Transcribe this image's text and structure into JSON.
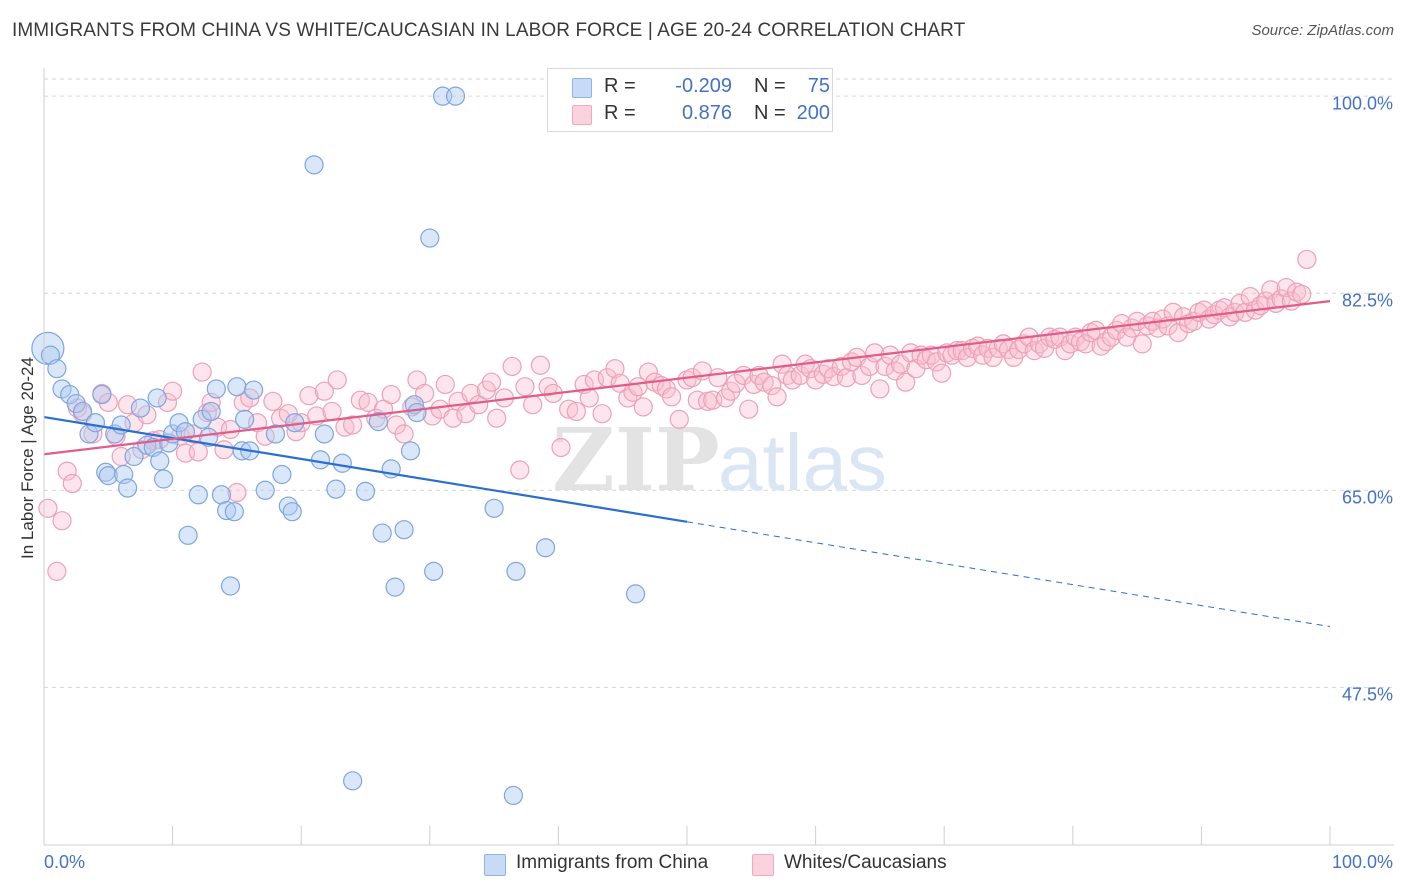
{
  "chart_data": {
    "type": "scatter",
    "title": "IMMIGRANTS FROM CHINA VS WHITE/CAUCASIAN IN LABOR FORCE | AGE 20-24 CORRELATION CHART",
    "source": "Source: ZipAtlas.com",
    "xlabel": "",
    "ylabel": "In Labor Force | Age 20-24",
    "xlim": [
      0,
      100
    ],
    "ylim": [
      33.5,
      102.5
    ],
    "x_tick_labels": {
      "left": "0.0%",
      "right": "100.0%"
    },
    "y_ticks": [
      {
        "value": 100.0,
        "label": "100.0%"
      },
      {
        "value": 82.5,
        "label": "82.5%"
      },
      {
        "value": 65.0,
        "label": "65.0%"
      },
      {
        "value": 47.5,
        "label": "47.5%"
      }
    ],
    "grid": true,
    "watermark": "ZIPatlas",
    "series": [
      {
        "name": "Immigrants from China",
        "color": "#8fb4e8",
        "line_color": "#2a6fd0",
        "R": "-0.209",
        "N": "75",
        "trend": {
          "x0": 0,
          "y0": 71.5,
          "x1": 50,
          "y1": 62.2,
          "dash_to_x": 100,
          "dash_to_y": 52.9
        },
        "points": [
          [
            0.3,
            77.6
          ],
          [
            0.5,
            77.0
          ],
          [
            1.0,
            75.8
          ],
          [
            1.4,
            74.0
          ],
          [
            2.0,
            73.5
          ],
          [
            2.5,
            72.7
          ],
          [
            3.0,
            72.0
          ],
          [
            3.5,
            70.0
          ],
          [
            4.0,
            71.0
          ],
          [
            4.5,
            73.5
          ],
          [
            4.8,
            66.6
          ],
          [
            5.0,
            66.3
          ],
          [
            5.5,
            70.0
          ],
          [
            6.0,
            70.8
          ],
          [
            6.2,
            66.4
          ],
          [
            6.5,
            65.2
          ],
          [
            7.0,
            68.0
          ],
          [
            7.5,
            72.3
          ],
          [
            8.0,
            69.0
          ],
          [
            8.5,
            68.8
          ],
          [
            8.8,
            73.2
          ],
          [
            9.0,
            67.6
          ],
          [
            9.3,
            66.0
          ],
          [
            9.7,
            69.2
          ],
          [
            10.0,
            70.0
          ],
          [
            10.5,
            71.0
          ],
          [
            11.0,
            70.2
          ],
          [
            11.2,
            61.0
          ],
          [
            12.0,
            64.6
          ],
          [
            12.3,
            71.3
          ],
          [
            12.8,
            69.7
          ],
          [
            13.0,
            72.0
          ],
          [
            13.4,
            74.0
          ],
          [
            13.8,
            64.6
          ],
          [
            14.2,
            63.2
          ],
          [
            14.5,
            56.5
          ],
          [
            14.8,
            63.1
          ],
          [
            15.0,
            74.2
          ],
          [
            15.4,
            68.5
          ],
          [
            15.6,
            71.3
          ],
          [
            16.0,
            68.5
          ],
          [
            16.3,
            73.9
          ],
          [
            17.2,
            65.0
          ],
          [
            18.0,
            70.0
          ],
          [
            18.5,
            66.4
          ],
          [
            19.0,
            63.6
          ],
          [
            19.3,
            63.1
          ],
          [
            19.5,
            71.0
          ],
          [
            21.0,
            93.9
          ],
          [
            21.5,
            67.7
          ],
          [
            21.8,
            70.0
          ],
          [
            22.7,
            65.1
          ],
          [
            23.2,
            67.4
          ],
          [
            24.0,
            39.2
          ],
          [
            25.0,
            64.9
          ],
          [
            26.0,
            71.1
          ],
          [
            26.3,
            61.2
          ],
          [
            27.0,
            66.9
          ],
          [
            27.3,
            56.4
          ],
          [
            28.0,
            61.5
          ],
          [
            28.5,
            68.5
          ],
          [
            28.8,
            72.6
          ],
          [
            29.0,
            71.9
          ],
          [
            30.0,
            87.4
          ],
          [
            30.3,
            57.8
          ],
          [
            31.0,
            100.0
          ],
          [
            32.0,
            100.0
          ],
          [
            35.0,
            63.4
          ],
          [
            36.5,
            37.9
          ],
          [
            36.7,
            57.8
          ],
          [
            39.0,
            59.9
          ],
          [
            46.0,
            55.8
          ]
        ]
      },
      {
        "name": "Whites/Caucasians",
        "color": "#f4a7be",
        "line_color": "#e05d8a",
        "R": "0.876",
        "N": "200",
        "trend": {
          "x0": 0,
          "y0": 68.2,
          "x1": 100,
          "y1": 81.8
        },
        "points": [
          [
            0.3,
            63.4
          ],
          [
            1.0,
            57.8
          ],
          [
            1.4,
            62.3
          ],
          [
            1.8,
            66.7
          ],
          [
            2.2,
            65.6
          ],
          [
            2.6,
            72.3
          ],
          [
            3.0,
            71.8
          ],
          [
            3.8,
            70.0
          ],
          [
            4.5,
            73.6
          ],
          [
            5.0,
            72.8
          ],
          [
            5.6,
            69.8
          ],
          [
            6.0,
            68.0
          ],
          [
            6.5,
            72.6
          ],
          [
            7.0,
            71.0
          ],
          [
            7.6,
            68.6
          ],
          [
            8.0,
            71.7
          ],
          [
            8.5,
            69.4
          ],
          [
            9.0,
            69.5
          ],
          [
            9.6,
            72.8
          ],
          [
            10.0,
            73.8
          ],
          [
            10.6,
            69.8
          ],
          [
            11.0,
            68.3
          ],
          [
            11.6,
            70.0
          ],
          [
            12.0,
            68.4
          ],
          [
            12.3,
            75.5
          ],
          [
            12.7,
            71.9
          ],
          [
            13.0,
            72.8
          ],
          [
            13.5,
            70.6
          ],
          [
            14.0,
            68.6
          ],
          [
            14.5,
            70.4
          ],
          [
            15.0,
            64.8
          ],
          [
            15.5,
            72.8
          ],
          [
            16.0,
            73.2
          ],
          [
            16.6,
            71.0
          ],
          [
            17.2,
            69.8
          ],
          [
            17.8,
            72.9
          ],
          [
            18.4,
            71.4
          ],
          [
            19.0,
            71.8
          ],
          [
            19.6,
            70.2
          ],
          [
            20.0,
            71.0
          ],
          [
            20.6,
            73.4
          ],
          [
            21.2,
            71.6
          ],
          [
            21.8,
            73.8
          ],
          [
            22.4,
            72.0
          ],
          [
            22.8,
            74.8
          ],
          [
            23.4,
            70.6
          ],
          [
            24.0,
            70.8
          ],
          [
            24.6,
            73.0
          ],
          [
            25.2,
            72.8
          ],
          [
            25.8,
            71.4
          ],
          [
            26.4,
            72.2
          ],
          [
            27.0,
            73.5
          ],
          [
            27.4,
            70.8
          ],
          [
            28.0,
            70.0
          ],
          [
            28.6,
            72.4
          ],
          [
            29.0,
            74.8
          ],
          [
            29.6,
            73.6
          ],
          [
            30.2,
            71.6
          ],
          [
            30.8,
            72.2
          ],
          [
            31.2,
            74.4
          ],
          [
            31.8,
            71.4
          ],
          [
            32.2,
            72.9
          ],
          [
            32.8,
            71.8
          ],
          [
            33.2,
            73.6
          ],
          [
            33.8,
            72.6
          ],
          [
            34.4,
            73.9
          ],
          [
            34.8,
            74.6
          ],
          [
            35.2,
            71.4
          ],
          [
            35.8,
            73.2
          ],
          [
            36.4,
            76.0
          ],
          [
            37.0,
            66.8
          ],
          [
            37.4,
            74.2
          ],
          [
            38.0,
            72.6
          ],
          [
            38.6,
            76.1
          ],
          [
            39.2,
            74.2
          ],
          [
            39.6,
            73.6
          ],
          [
            40.2,
            68.8
          ],
          [
            40.8,
            72.2
          ],
          [
            41.4,
            72.0
          ],
          [
            42.0,
            74.4
          ],
          [
            42.4,
            73.2
          ],
          [
            42.8,
            74.8
          ],
          [
            43.4,
            71.8
          ],
          [
            43.8,
            75.0
          ],
          [
            44.4,
            75.8
          ],
          [
            44.8,
            74.5
          ],
          [
            45.4,
            73.2
          ],
          [
            45.8,
            73.7
          ],
          [
            46.2,
            74.2
          ],
          [
            46.6,
            72.4
          ],
          [
            47.0,
            75.5
          ],
          [
            47.5,
            74.6
          ],
          [
            48.0,
            74.3
          ],
          [
            48.4,
            74.0
          ],
          [
            48.8,
            73.3
          ],
          [
            49.4,
            71.3
          ],
          [
            50.0,
            74.8
          ],
          [
            50.4,
            75.0
          ],
          [
            50.8,
            73.0
          ],
          [
            51.2,
            75.6
          ],
          [
            51.6,
            72.9
          ],
          [
            52.0,
            73.0
          ],
          [
            52.4,
            75.0
          ],
          [
            53.0,
            73.2
          ],
          [
            53.4,
            73.8
          ],
          [
            53.8,
            74.5
          ],
          [
            54.4,
            75.2
          ],
          [
            54.8,
            72.2
          ],
          [
            55.2,
            74.4
          ],
          [
            55.6,
            75.2
          ],
          [
            56.0,
            74.6
          ],
          [
            56.6,
            74.3
          ],
          [
            57.0,
            73.3
          ],
          [
            57.4,
            76.2
          ],
          [
            57.8,
            75.2
          ],
          [
            58.2,
            74.8
          ],
          [
            58.8,
            75.2
          ],
          [
            59.2,
            76.2
          ],
          [
            59.6,
            75.8
          ],
          [
            60.0,
            74.8
          ],
          [
            60.6,
            75.3
          ],
          [
            61.0,
            75.8
          ],
          [
            61.4,
            75.1
          ],
          [
            62.0,
            76.0
          ],
          [
            62.4,
            75.0
          ],
          [
            62.8,
            76.4
          ],
          [
            63.2,
            76.8
          ],
          [
            63.6,
            75.2
          ],
          [
            64.2,
            76.0
          ],
          [
            64.6,
            77.2
          ],
          [
            65.0,
            74.0
          ],
          [
            65.4,
            76.0
          ],
          [
            65.8,
            77.0
          ],
          [
            66.2,
            75.6
          ],
          [
            66.6,
            76.2
          ],
          [
            67.0,
            74.6
          ],
          [
            67.4,
            77.2
          ],
          [
            67.8,
            75.8
          ],
          [
            68.2,
            77.0
          ],
          [
            68.6,
            76.6
          ],
          [
            69.0,
            77.0
          ],
          [
            69.4,
            76.4
          ],
          [
            69.8,
            75.4
          ],
          [
            70.2,
            77.2
          ],
          [
            70.6,
            77.0
          ],
          [
            71.0,
            77.4
          ],
          [
            71.4,
            77.4
          ],
          [
            71.8,
            76.8
          ],
          [
            72.2,
            77.6
          ],
          [
            72.6,
            77.8
          ],
          [
            73.0,
            77.0
          ],
          [
            73.4,
            77.6
          ],
          [
            73.8,
            76.8
          ],
          [
            74.2,
            77.6
          ],
          [
            74.6,
            78.0
          ],
          [
            75.0,
            77.5
          ],
          [
            75.4,
            76.8
          ],
          [
            75.8,
            77.5
          ],
          [
            76.2,
            78.0
          ],
          [
            76.6,
            78.6
          ],
          [
            77.0,
            77.4
          ],
          [
            77.4,
            78.0
          ],
          [
            77.8,
            77.6
          ],
          [
            78.2,
            78.6
          ],
          [
            78.6,
            78.4
          ],
          [
            79.0,
            78.6
          ],
          [
            79.4,
            77.4
          ],
          [
            79.8,
            78.0
          ],
          [
            80.2,
            78.6
          ],
          [
            80.6,
            78.2
          ],
          [
            81.0,
            78.0
          ],
          [
            81.4,
            79.0
          ],
          [
            81.8,
            79.2
          ],
          [
            82.2,
            77.8
          ],
          [
            82.6,
            78.2
          ],
          [
            83.0,
            78.6
          ],
          [
            83.4,
            79.2
          ],
          [
            83.8,
            79.8
          ],
          [
            84.2,
            78.6
          ],
          [
            84.6,
            79.4
          ],
          [
            85.0,
            80.0
          ],
          [
            85.4,
            78.0
          ],
          [
            85.8,
            79.6
          ],
          [
            86.2,
            80.0
          ],
          [
            86.6,
            79.4
          ],
          [
            87.0,
            80.2
          ],
          [
            87.4,
            79.6
          ],
          [
            87.8,
            80.8
          ],
          [
            88.2,
            79.0
          ],
          [
            88.6,
            80.4
          ],
          [
            89.0,
            79.8
          ],
          [
            89.4,
            80.0
          ],
          [
            89.8,
            80.8
          ],
          [
            90.2,
            81.0
          ],
          [
            90.6,
            80.2
          ],
          [
            91.0,
            80.6
          ],
          [
            91.4,
            81.0
          ],
          [
            91.8,
            81.2
          ],
          [
            92.2,
            80.4
          ],
          [
            92.6,
            80.8
          ],
          [
            93.0,
            81.6
          ],
          [
            93.4,
            80.8
          ],
          [
            93.8,
            82.2
          ],
          [
            94.2,
            81.0
          ],
          [
            94.6,
            81.4
          ],
          [
            95.0,
            81.8
          ],
          [
            95.4,
            82.8
          ],
          [
            95.8,
            81.6
          ],
          [
            96.2,
            82.0
          ],
          [
            96.6,
            83.0
          ],
          [
            97.0,
            81.8
          ],
          [
            97.4,
            82.6
          ],
          [
            97.8,
            82.4
          ],
          [
            98.2,
            85.5
          ]
        ]
      }
    ]
  }
}
